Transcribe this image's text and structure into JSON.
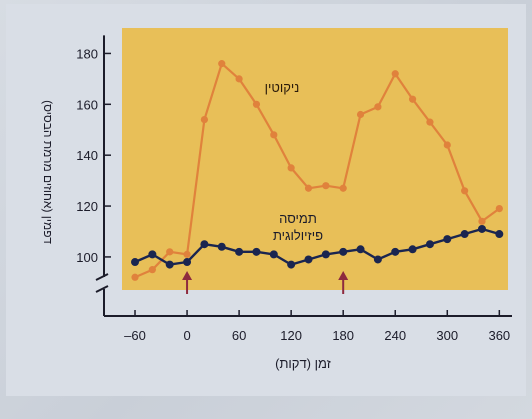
{
  "chart_data": {
    "type": "line",
    "xlabel": "זמן (דקות)",
    "ylabel": "דפמין (אחוזים מרמת הבסיס)",
    "x_ticks": [
      -60,
      0,
      60,
      120,
      180,
      240,
      300,
      360
    ],
    "y_ticks": [
      100,
      120,
      140,
      160,
      180
    ],
    "xlim": [
      -75,
      370
    ],
    "ylim": [
      87,
      190
    ],
    "axis_break": true,
    "grid": false,
    "colors": {
      "plot_background": "#e8bf58",
      "nicotine": "#e0823c",
      "physiological": "#1a2550",
      "arrow": "#8e2a3e",
      "axis": "#1c1c2a"
    },
    "series": [
      {
        "name": "ניקוטין",
        "points": [
          [
            -60,
            92
          ],
          [
            -40,
            95
          ],
          [
            -20,
            102
          ],
          [
            0,
            101
          ],
          [
            20,
            154
          ],
          [
            40,
            176
          ],
          [
            60,
            170
          ],
          [
            80,
            160
          ],
          [
            100,
            148
          ],
          [
            120,
            135
          ],
          [
            140,
            127
          ],
          [
            160,
            128
          ],
          [
            180,
            127
          ],
          [
            200,
            156
          ],
          [
            220,
            159
          ],
          [
            240,
            172
          ],
          [
            260,
            162
          ],
          [
            280,
            153
          ],
          [
            300,
            144
          ],
          [
            320,
            126
          ],
          [
            340,
            114
          ],
          [
            360,
            119
          ]
        ]
      },
      {
        "name": "תמיסה פיזיולוגית",
        "name_lines": [
          "תמיסה",
          "פיזיולוגית"
        ],
        "points": [
          [
            -60,
            98
          ],
          [
            -40,
            101
          ],
          [
            -20,
            97
          ],
          [
            0,
            98
          ],
          [
            20,
            105
          ],
          [
            40,
            104
          ],
          [
            60,
            102
          ],
          [
            80,
            102
          ],
          [
            100,
            101
          ],
          [
            120,
            97
          ],
          [
            140,
            99
          ],
          [
            160,
            101
          ],
          [
            180,
            102
          ],
          [
            200,
            103
          ],
          [
            220,
            99
          ],
          [
            240,
            102
          ],
          [
            260,
            103
          ],
          [
            280,
            105
          ],
          [
            300,
            107
          ],
          [
            320,
            109
          ],
          [
            340,
            111
          ],
          [
            360,
            109
          ]
        ]
      }
    ],
    "arrows_at_x": [
      0,
      180
    ]
  }
}
